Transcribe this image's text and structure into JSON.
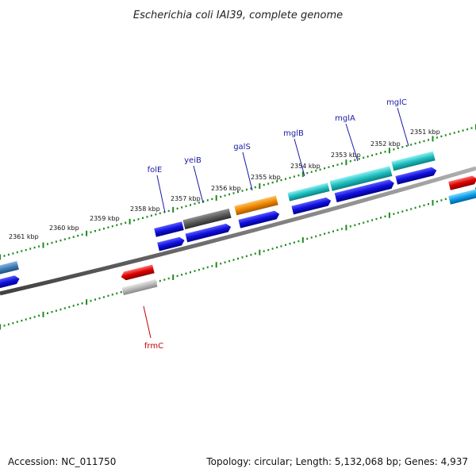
{
  "title": "Escherichia coli IAI39, complete genome",
  "footer": {
    "accession": "Accession: NC_011750",
    "summary": "Topology: circular; Length: 5,132,068 bp; Genes: 4,937"
  },
  "colors": {
    "background": "#ffffff",
    "backbone": "#7a7a7a",
    "ruler": "#1f8a1f",
    "blue_cds": "#1010dd",
    "label_blue": "#1a1aa8",
    "label_red": "#c00000",
    "dark_gray": "#555555",
    "orange": "#ee8800",
    "teal": "#1fbfc0",
    "red": "#dd0000",
    "light_gray": "#b8b8b8",
    "steel": "#3f7fb8",
    "sky": "#10a0e8"
  },
  "ruler_labels": [
    {
      "text": "2361 kbp"
    },
    {
      "text": "2360 kbp"
    },
    {
      "text": "2359 kbp"
    },
    {
      "text": "2358 kbp"
    },
    {
      "text": "2357 kbp"
    },
    {
      "text": "2356 kbp"
    },
    {
      "text": "2355 kbp"
    },
    {
      "text": "2354 kbp"
    },
    {
      "text": "2353 kbp"
    },
    {
      "text": "2352 kbp"
    },
    {
      "text": "2351 kbp"
    }
  ],
  "genes": [
    {
      "name": "folE",
      "strand": "minus"
    },
    {
      "name": "yeiB",
      "strand": "minus"
    },
    {
      "name": "galS",
      "strand": "minus"
    },
    {
      "name": "mglB",
      "strand": "minus"
    },
    {
      "name": "mglA",
      "strand": "minus"
    },
    {
      "name": "mglC",
      "strand": "minus"
    },
    {
      "name": "frmC",
      "strand": "plus"
    }
  ]
}
